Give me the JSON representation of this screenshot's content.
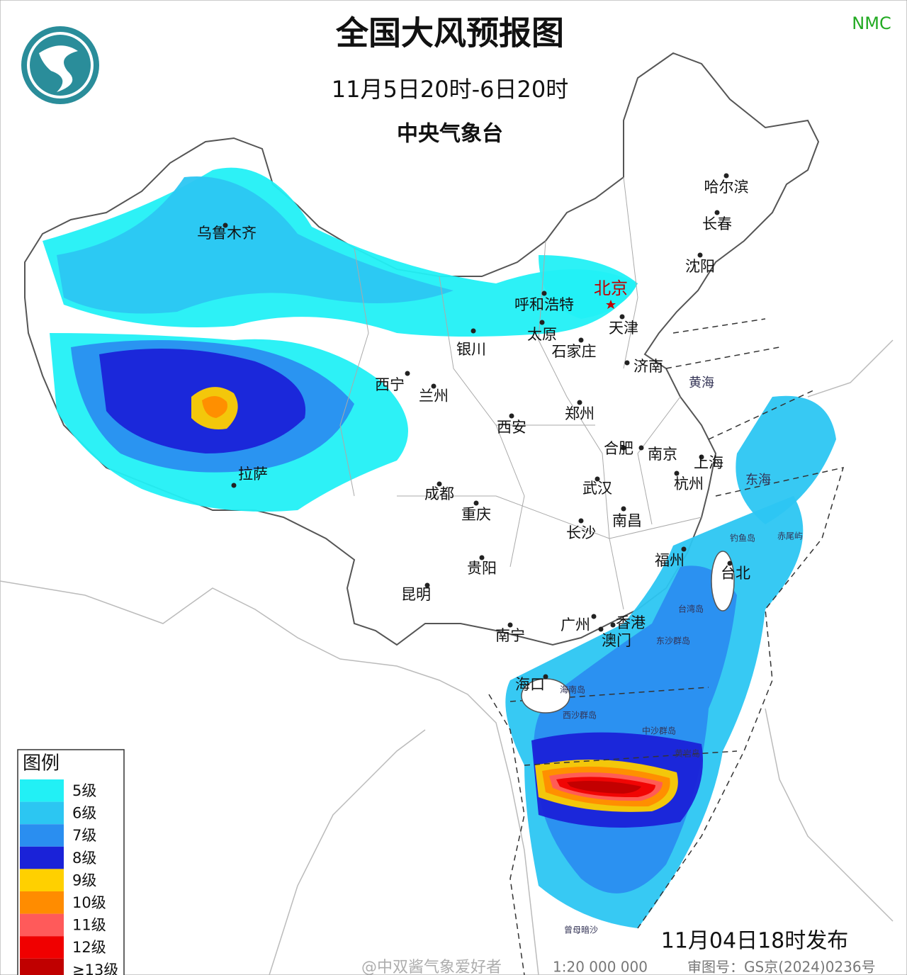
{
  "header": {
    "title": "全国大风预报图",
    "period": "11月5日20时-6日20时",
    "issuer": "中央气象台",
    "logo_text": "NMC"
  },
  "cities": [
    "乌鲁木齐",
    "哈尔滨",
    "长春",
    "沈阳",
    "北京",
    "呼和浩特",
    "天津",
    "太原",
    "石家庄",
    "银川",
    "济南",
    "西宁",
    "兰州",
    "郑州",
    "西安",
    "合肥",
    "南京",
    "上海",
    "杭州",
    "拉萨",
    "成都",
    "武汉",
    "重庆",
    "长沙",
    "南昌",
    "福州",
    "台北",
    "贵阳",
    "昆明",
    "广州",
    "香港",
    "澳门",
    "南宁",
    "海口"
  ],
  "places": [
    "黄海",
    "东海",
    "台湾岛",
    "东沙群岛",
    "海南岛",
    "西沙群岛",
    "中沙群岛",
    "黄岩岛",
    "钓鱼岛",
    "赤尾屿",
    "曾母暗沙"
  ],
  "legend": {
    "title": "图例",
    "items": [
      {
        "label": "5级",
        "color": "#22f0f5"
      },
      {
        "label": "6级",
        "color": "#2cc6f2"
      },
      {
        "label": "7级",
        "color": "#2a8ef0"
      },
      {
        "label": "8级",
        "color": "#1a22d8"
      },
      {
        "label": "9级",
        "color": "#ffd000"
      },
      {
        "label": "10级",
        "color": "#ff8c00"
      },
      {
        "label": "11级",
        "color": "#ff5a5a"
      },
      {
        "label": "12级",
        "color": "#f00000"
      },
      {
        "label": "≥13级",
        "color": "#c00000"
      }
    ]
  },
  "footer": {
    "issued": "11月04日18时发布",
    "watermark": "@中双酱气象爱好者",
    "scale": "1:20 000 000",
    "map_number": "审图号：GS京(2024)0236号"
  }
}
